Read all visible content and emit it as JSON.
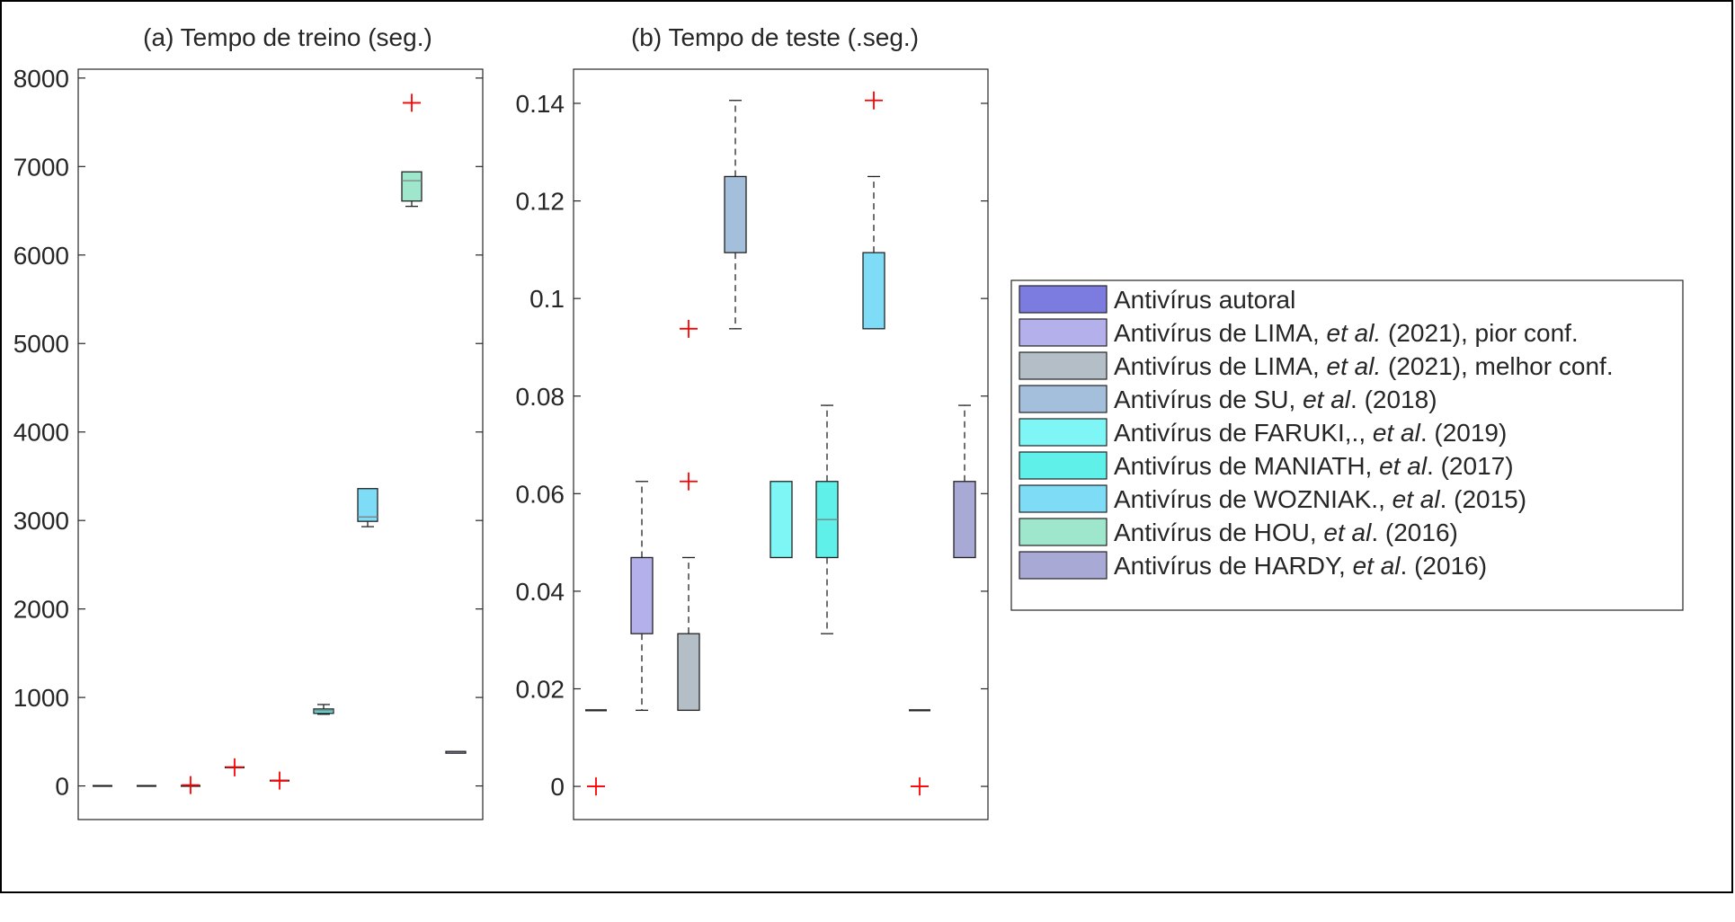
{
  "chart_data": [
    {
      "type": "box",
      "title": "(a) Tempo de treino (seg.)",
      "ylim": [
        -380,
        8100
      ],
      "yticks": [
        0,
        1000,
        2000,
        3000,
        4000,
        5000,
        6000,
        7000,
        8000
      ],
      "ytick_labels": [
        "0",
        "1000",
        "2000",
        "3000",
        "4000",
        "5000",
        "6000",
        "7000",
        "8000"
      ],
      "grid": false,
      "boxes": [
        {
          "series": 0,
          "color": "#7b7be0",
          "q1": 0,
          "median": 0,
          "q3": 0,
          "whisker_low": 0,
          "whisker_high": 0,
          "outliers": []
        },
        {
          "series": 1,
          "color": "#b3b0ec",
          "q1": 0,
          "median": 0,
          "q3": 0,
          "whisker_low": 0,
          "whisker_high": 0,
          "outliers": []
        },
        {
          "series": 2,
          "color": "#b4bec6",
          "q1": 0,
          "median": 0,
          "q3": 0,
          "whisker_low": 0,
          "whisker_high": 0,
          "outliers": [
            10
          ]
        },
        {
          "series": 3,
          "color": "#a3bfdc",
          "q1": 210,
          "median": 210,
          "q3": 210,
          "whisker_low": 210,
          "whisker_high": 210,
          "outliers": [
            210
          ]
        },
        {
          "series": 4,
          "color": "#7ff6f6",
          "q1": 60,
          "median": 60,
          "q3": 60,
          "whisker_low": 60,
          "whisker_high": 60,
          "outliers": [
            60
          ]
        },
        {
          "series": 5,
          "color": "#5ff0ea",
          "q1": 820,
          "median": 850,
          "q3": 870,
          "whisker_low": 810,
          "whisker_high": 920,
          "outliers": []
        },
        {
          "series": 6,
          "color": "#7fdcf6",
          "q1": 2990,
          "median": 3040,
          "q3": 3360,
          "whisker_low": 2930,
          "whisker_high": 3360,
          "outliers": []
        },
        {
          "series": 7,
          "color": "#9ee6cc",
          "q1": 6610,
          "median": 6840,
          "q3": 6940,
          "whisker_low": 6550,
          "whisker_high": 6940,
          "outliers": [
            7720
          ]
        },
        {
          "series": 8,
          "color": "#a9a9d6",
          "q1": 370,
          "median": 380,
          "q3": 390,
          "whisker_low": 370,
          "whisker_high": 390,
          "outliers": []
        }
      ]
    },
    {
      "type": "box",
      "title": "(b) Tempo de teste (.seg.)",
      "ylim": [
        -0.0068,
        0.147
      ],
      "yticks": [
        0,
        0.02,
        0.04,
        0.06,
        0.08,
        0.1,
        0.12,
        0.14
      ],
      "ytick_labels": [
        "0",
        "0.02",
        "0.04",
        "0.06",
        "0.08",
        "0.1",
        "0.12",
        "0.14"
      ],
      "grid": false,
      "boxes": [
        {
          "series": 0,
          "color": "#7b7be0",
          "q1": 0.0156,
          "median": 0.0156,
          "q3": 0.0156,
          "whisker_low": 0.0156,
          "whisker_high": 0.0156,
          "outliers": [
            0
          ]
        },
        {
          "series": 1,
          "color": "#b3b0ec",
          "q1": 0.0313,
          "median": 0.0313,
          "q3": 0.0469,
          "whisker_low": 0.0156,
          "whisker_high": 0.0625,
          "outliers": []
        },
        {
          "series": 2,
          "color": "#b4bec6",
          "q1": 0.0156,
          "median": 0.0156,
          "q3": 0.0313,
          "whisker_low": 0.0156,
          "whisker_high": 0.0469,
          "outliers": [
            0.0625,
            0.0938
          ]
        },
        {
          "series": 3,
          "color": "#a3bfdc",
          "q1": 0.1094,
          "median": 0.1094,
          "q3": 0.125,
          "whisker_low": 0.0938,
          "whisker_high": 0.1406,
          "outliers": []
        },
        {
          "series": 4,
          "color": "#7ff6f6",
          "q1": 0.0469,
          "median": 0.0469,
          "q3": 0.0625,
          "whisker_low": 0.0469,
          "whisker_high": 0.0625,
          "outliers": []
        },
        {
          "series": 5,
          "color": "#5ff0ea",
          "q1": 0.0469,
          "median": 0.0547,
          "q3": 0.0625,
          "whisker_low": 0.0313,
          "whisker_high": 0.0781,
          "outliers": []
        },
        {
          "series": 6,
          "color": "#7fdcf6",
          "q1": 0.0938,
          "median": 0.0938,
          "q3": 0.1094,
          "whisker_low": 0.0938,
          "whisker_high": 0.125,
          "outliers": [
            0.1406
          ]
        },
        {
          "series": 7,
          "color": "#9ee6cc",
          "q1": 0.0156,
          "median": 0.0156,
          "q3": 0.0156,
          "whisker_low": 0.0156,
          "whisker_high": 0.0156,
          "outliers": [
            0
          ]
        },
        {
          "series": 8,
          "color": "#a9a9d6",
          "q1": 0.0469,
          "median": 0.0469,
          "q3": 0.0625,
          "whisker_low": 0.0469,
          "whisker_high": 0.0781,
          "outliers": []
        }
      ]
    }
  ],
  "legend": {
    "placement": "right",
    "items": [
      {
        "color": "#7b7be0",
        "parts": [
          {
            "t": "Antivírus autoral"
          }
        ]
      },
      {
        "color": "#b3b0ec",
        "parts": [
          {
            "t": "Antivírus de LIMA, "
          },
          {
            "t": "et al.",
            "i": true
          },
          {
            "t": " (2021), pior conf."
          }
        ]
      },
      {
        "color": "#b4bec6",
        "parts": [
          {
            "t": "Antivírus de LIMA, "
          },
          {
            "t": "et al.",
            "i": true
          },
          {
            "t": " (2021), melhor conf."
          }
        ]
      },
      {
        "color": "#a3bfdc",
        "parts": [
          {
            "t": "Antivírus de SU,  "
          },
          {
            "t": "et al",
            "i": true
          },
          {
            "t": ". (2018)"
          }
        ]
      },
      {
        "color": "#7ff6f6",
        "parts": [
          {
            "t": "Antivírus de FARUKI,., "
          },
          {
            "t": "et al",
            "i": true
          },
          {
            "t": ". (2019)"
          }
        ]
      },
      {
        "color": "#5ff0ea",
        "parts": [
          {
            "t": "Antivírus de MANIATH, "
          },
          {
            "t": "et al",
            "i": true
          },
          {
            "t": ". (2017)"
          }
        ]
      },
      {
        "color": "#7fdcf6",
        "parts": [
          {
            "t": "Antivírus de WOZNIAK., "
          },
          {
            "t": "et al",
            "i": true
          },
          {
            "t": ". (2015)"
          }
        ]
      },
      {
        "color": "#9ee6cc",
        "parts": [
          {
            "t": "Antivírus de HOU, "
          },
          {
            "t": "et al",
            "i": true
          },
          {
            "t": ". (2016)"
          }
        ]
      },
      {
        "color": "#a9a9d6",
        "parts": [
          {
            "t": "Antivírus de HARDY, "
          },
          {
            "t": "et al",
            "i": true
          },
          {
            "t": ". (2016)"
          }
        ]
      }
    ]
  }
}
